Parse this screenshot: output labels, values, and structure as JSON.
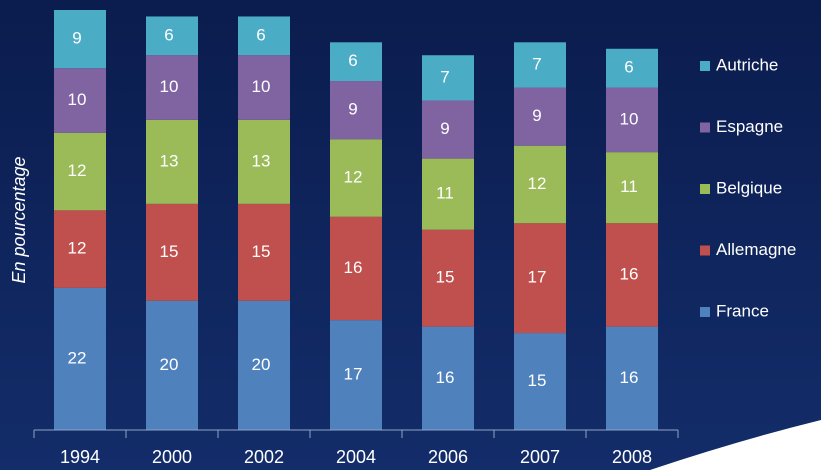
{
  "chart_data": {
    "type": "stacked_bar",
    "y_label": "En pourcentage",
    "categories": [
      "1994",
      "2000",
      "2002",
      "2004",
      "2006",
      "2007",
      "2008"
    ],
    "series": [
      {
        "name": "France",
        "color": "#4f81bd",
        "values": [
          22,
          20,
          20,
          17,
          16,
          15,
          16
        ]
      },
      {
        "name": "Allemagne",
        "color": "#c0504d",
        "values": [
          12,
          15,
          15,
          16,
          15,
          17,
          16
        ]
      },
      {
        "name": "Belgique",
        "color": "#9bbb59",
        "values": [
          12,
          13,
          13,
          12,
          11,
          12,
          11
        ]
      },
      {
        "name": "Espagne",
        "color": "#8064a2",
        "values": [
          10,
          10,
          10,
          9,
          9,
          9,
          10
        ]
      },
      {
        "name": "Autriche",
        "color": "#4bacc6",
        "values": [
          9,
          6,
          6,
          6,
          7,
          7,
          6
        ]
      }
    ],
    "legend": "right"
  }
}
